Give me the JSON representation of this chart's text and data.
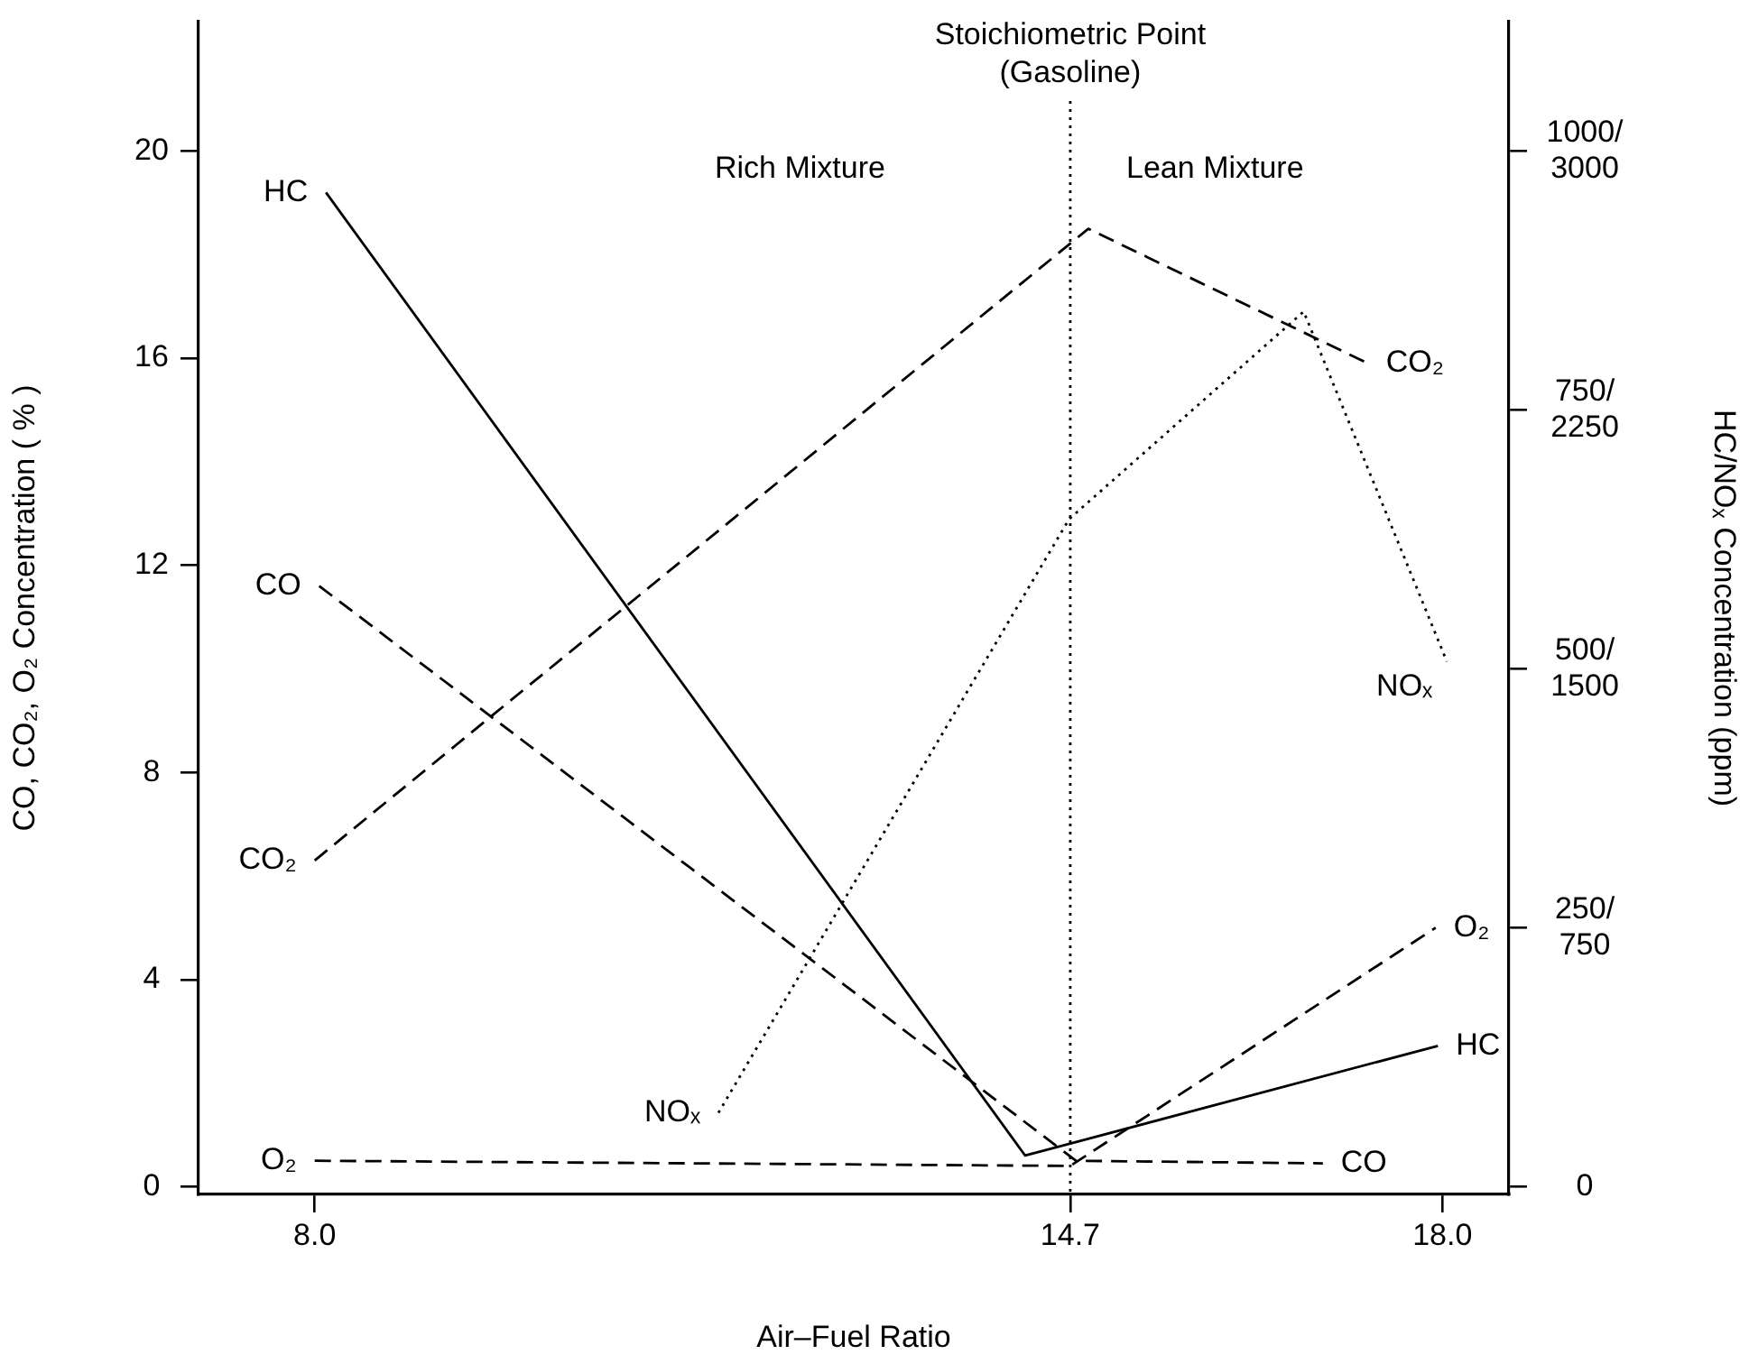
{
  "chart_data": {
    "type": "line",
    "xlabel": "Air–Fuel Ratio",
    "ylabel": "CO, CO₂, O₂ Concentration ( % )",
    "y2label": "HC/NOₓ Concentration (ppm)",
    "xlim": [
      6.97,
      18.59
    ],
    "xticks": [
      {
        "value": 8,
        "label": "8.0"
      },
      14.7,
      {
        "value": 18,
        "label": "18.0"
      }
    ],
    "ylim": [
      -0.15,
      22.5
    ],
    "yticks": [
      0,
      4,
      8,
      12,
      16,
      20
    ],
    "y2lim": [
      -7.5,
      1125
    ],
    "y2ticks": [
      0,
      {
        "value": 250,
        "label": "250/"
      },
      {
        "value": 500,
        "label": "500/"
      },
      {
        "value": 750,
        "label": "750/"
      },
      {
        "value": 1000,
        "label": "1000/"
      }
    ],
    "y3lim": [
      -22.5,
      3375
    ],
    "y3ticks": [
      750,
      1500,
      2250,
      3000
    ],
    "grid": false,
    "legend": false,
    "marker": "none",
    "series": [
      {
        "name": "HC",
        "color": "#000000",
        "axis": "y2",
        "line_style": "solid",
        "x": [
          8.1,
          14.3,
          17.96
        ],
        "values": [
          960,
          30,
          136
        ]
      },
      {
        "name": "CO",
        "color": "#000000",
        "line_style": "dashed",
        "x": [
          8.04,
          14.75,
          16.94
        ],
        "values": [
          11.6,
          0.5,
          0.45
        ]
      },
      {
        "name": "CO₂",
        "color": "#000000",
        "line_style": "dashed",
        "x": [
          8.0,
          14.86,
          17.34
        ],
        "values": [
          6.3,
          18.5,
          15.9
        ]
      },
      {
        "name": "NOₓ",
        "color": "#000000",
        "axis": "y3",
        "line_style": "dotted",
        "x": [
          11.58,
          14.69,
          16.77,
          18.04
        ],
        "values": [
          214,
          1934,
          2535,
          1521
        ]
      },
      {
        "name": "O₂",
        "color": "#000000",
        "line_style": "dashed",
        "x": [
          8.0,
          14.7,
          17.94
        ],
        "values": [
          0.5,
          0.4,
          5.0
        ]
      }
    ],
    "ref_lines": [
      {
        "axis": "x",
        "value": 14.7,
        "label": "Stoichiometric Point (Gasoline)",
        "line_style": "dotted",
        "color": "#000000"
      }
    ],
    "annotations": [
      "Rich Mixture",
      "Lean Mixture"
    ]
  }
}
